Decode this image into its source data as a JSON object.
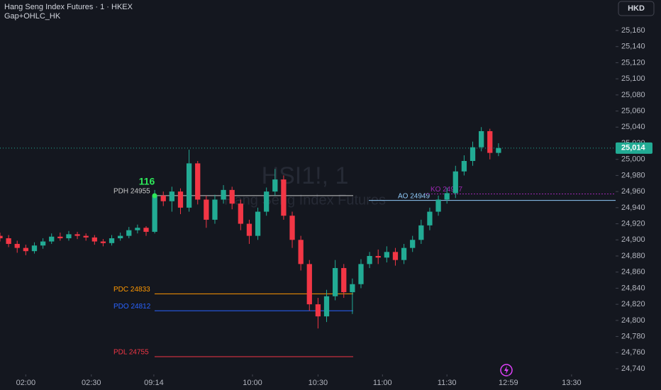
{
  "header": {
    "title": "Hang Seng Index Futures · 1 · HKEX",
    "indicator": "Gap+OHLC_HK",
    "currency": "HKD"
  },
  "chart_data": {
    "type": "candlestick",
    "watermark": {
      "symbol": "HSI1!, 1",
      "name": "Hang Seng Index Futures"
    },
    "up_color": "#22ab94",
    "down_color": "#f23645",
    "x": [
      0,
      4,
      8,
      12,
      16,
      20,
      24,
      28,
      32,
      36,
      40,
      44,
      48,
      52,
      56,
      60,
      64,
      68,
      72,
      76,
      80,
      84,
      88,
      92,
      96,
      100,
      104,
      108,
      112,
      116,
      120,
      124,
      128,
      132,
      136,
      140,
      144,
      148,
      152,
      156,
      160,
      164,
      168,
      172,
      176,
      180,
      184,
      188,
      192,
      196,
      200,
      204,
      208,
      212,
      216,
      220,
      224,
      228,
      232
    ],
    "open": [
      24905,
      24902,
      24895,
      24890,
      24886,
      24893,
      24898,
      24904,
      24902,
      24907,
      24905,
      24903,
      24898,
      24896,
      24902,
      24905,
      24912,
      24915,
      24910,
      24955,
      24948,
      24960,
      24940,
      24995,
      24950,
      24925,
      24950,
      24962,
      24945,
      24920,
      24905,
      24935,
      24960,
      24975,
      24930,
      24900,
      24870,
      24820,
      24805,
      24830,
      24865,
      24835,
      24845,
      24870,
      24880,
      24878,
      24885,
      24875,
      24890,
      24900,
      24918,
      24935,
      24950,
      24958,
      24985,
      24998,
      25015,
      25035,
      25008
    ],
    "high": [
      24909,
      24906,
      24899,
      24894,
      24897,
      24902,
      24908,
      24909,
      24911,
      24910,
      24908,
      24906,
      24901,
      24906,
      24909,
      24916,
      24919,
      24917,
      24962,
      24960,
      24966,
      24964,
      25012,
      24998,
      24955,
      24956,
      24968,
      24966,
      24950,
      24925,
      24940,
      24965,
      24988,
      24980,
      24935,
      24905,
      24875,
      24828,
      24838,
      24875,
      24870,
      24852,
      24876,
      24885,
      24888,
      24892,
      24890,
      24895,
      24905,
      24925,
      24940,
      24955,
      24965,
      24992,
      25005,
      25022,
      25040,
      25038,
      25020
    ],
    "low": [
      24898,
      24891,
      24884,
      24881,
      24883,
      24889,
      24895,
      24899,
      24899,
      24901,
      24899,
      24894,
      24892,
      24893,
      24899,
      24902,
      24908,
      24905,
      24908,
      24942,
      24935,
      24932,
      24935,
      24944,
      24915,
      24920,
      24945,
      24938,
      24912,
      24895,
      24900,
      24930,
      24955,
      24925,
      24890,
      24862,
      24812,
      24790,
      24798,
      24825,
      24828,
      24808,
      24840,
      24865,
      24870,
      24872,
      24868,
      24870,
      24885,
      24895,
      24912,
      24930,
      24945,
      24952,
      24980,
      24992,
      25010,
      25000,
      25004
    ],
    "close": [
      24902,
      24895,
      24890,
      24886,
      24893,
      24898,
      24904,
      24902,
      24907,
      24905,
      24903,
      24898,
      24896,
      24902,
      24905,
      24912,
      24915,
      24910,
      24955,
      24948,
      24960,
      24940,
      24995,
      24950,
      24925,
      24950,
      24962,
      24945,
      24920,
      24905,
      24935,
      24960,
      24975,
      24930,
      24900,
      24870,
      24820,
      24805,
      24830,
      24865,
      24835,
      24845,
      24870,
      24880,
      24878,
      24885,
      24875,
      24890,
      24900,
      24918,
      24935,
      24950,
      24958,
      24985,
      24998,
      25015,
      25035,
      25008,
      25014
    ],
    "xlim": [
      0,
      286.5
    ],
    "xticks": [
      {
        "value": 12,
        "label": "02:00"
      },
      {
        "value": 42.5,
        "label": "02:30"
      },
      {
        "value": 71.6,
        "label": "09:14"
      },
      {
        "value": 117.5,
        "label": "10:00"
      },
      {
        "value": 148,
        "label": "10:30"
      },
      {
        "value": 178,
        "label": "11:00"
      },
      {
        "value": 208,
        "label": "11:30"
      },
      {
        "value": 236.6,
        "label": "12:59"
      },
      {
        "value": 266,
        "label": "13:30"
      }
    ],
    "ylim": [
      24740,
      25160
    ],
    "yticks": [
      {
        "value": 24740,
        "label": "24,740"
      },
      {
        "value": 24760,
        "label": "24,760"
      },
      {
        "value": 24780,
        "label": "24,780"
      },
      {
        "value": 24800,
        "label": "24,800"
      },
      {
        "value": 24820,
        "label": "24,820"
      },
      {
        "value": 24840,
        "label": "24,840"
      },
      {
        "value": 24860,
        "label": "24,860"
      },
      {
        "value": 24880,
        "label": "24,880"
      },
      {
        "value": 24900,
        "label": "24,900"
      },
      {
        "value": 24920,
        "label": "24,920"
      },
      {
        "value": 24940,
        "label": "24,940"
      },
      {
        "value": 24960,
        "label": "24,960"
      },
      {
        "value": 24980,
        "label": "24,980"
      },
      {
        "value": 25000,
        "label": "25,000"
      },
      {
        "value": 25020,
        "label": "25,020"
      },
      {
        "value": 25040,
        "label": "25,040"
      },
      {
        "value": 25060,
        "label": "25,060"
      },
      {
        "value": 25080,
        "label": "25,080"
      },
      {
        "value": 25100,
        "label": "25,100"
      },
      {
        "value": 25120,
        "label": "25,120"
      },
      {
        "value": 25140,
        "label": "25,140"
      },
      {
        "value": 25160,
        "label": "25,160"
      }
    ],
    "last_price": {
      "value": 25014,
      "label": "25,014",
      "color": "#22ab94"
    },
    "gap_label": "116",
    "levels": [
      {
        "label": "PDH 24955",
        "value": 24955,
        "color": "#c8c8c8"
      },
      {
        "label": "AO 24949",
        "value": 24949,
        "color": "#90caf9"
      },
      {
        "label": "KO 24957",
        "value": 24957,
        "color": "#9c27b0"
      },
      {
        "label": "PDC 24833",
        "value": 24833,
        "color": "#ff9800"
      },
      {
        "label": "PDO 24812",
        "value": 24812,
        "color": "#2962ff"
      },
      {
        "label": "PDL 24755",
        "value": 24755,
        "color": "#f23645"
      }
    ]
  }
}
